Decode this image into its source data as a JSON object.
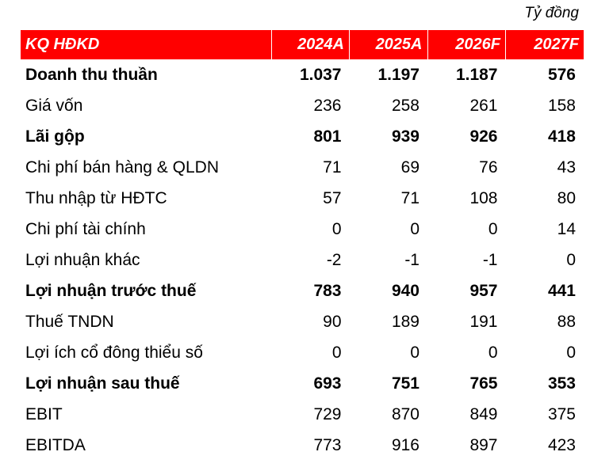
{
  "unit": "Tỷ đồng",
  "header": {
    "label": "KQ HĐKD",
    "years": [
      "2024A",
      "2025A",
      "2026F",
      "2027F"
    ]
  },
  "rows": [
    {
      "label": "Doanh thu thuần",
      "values": [
        "1.037",
        "1.197",
        "1.187",
        "576"
      ],
      "bold": true
    },
    {
      "label": "Giá vốn",
      "values": [
        "236",
        "258",
        "261",
        "158"
      ],
      "bold": false
    },
    {
      "label": "Lãi gộp",
      "values": [
        "801",
        "939",
        "926",
        "418"
      ],
      "bold": true
    },
    {
      "label": "Chi phí bán hàng & QLDN",
      "values": [
        "71",
        "69",
        "76",
        "43"
      ],
      "bold": false
    },
    {
      "label": "Thu nhập từ HĐTC",
      "values": [
        "57",
        "71",
        "108",
        "80"
      ],
      "bold": false
    },
    {
      "label": "Chi phí tài chính",
      "values": [
        "0",
        "0",
        "0",
        "14"
      ],
      "bold": false
    },
    {
      "label": "Lợi nhuận khác",
      "values": [
        "-2",
        "-1",
        "-1",
        "0"
      ],
      "bold": false
    },
    {
      "label": "Lợi nhuận trước thuế",
      "values": [
        "783",
        "940",
        "957",
        "441"
      ],
      "bold": true
    },
    {
      "label": "Thuế TNDN",
      "values": [
        "90",
        "189",
        "191",
        "88"
      ],
      "bold": false
    },
    {
      "label": "Lợi ích cổ đông thiểu số",
      "values": [
        "0",
        "0",
        "0",
        "0"
      ],
      "bold": false
    },
    {
      "label": "Lợi nhuận sau thuế",
      "values": [
        "693",
        "751",
        "765",
        "353"
      ],
      "bold": true
    },
    {
      "label": "EBIT",
      "values": [
        "729",
        "870",
        "849",
        "375"
      ],
      "bold": false
    },
    {
      "label": "EBITDA",
      "values": [
        "773",
        "916",
        "897",
        "423"
      ],
      "bold": false
    }
  ]
}
